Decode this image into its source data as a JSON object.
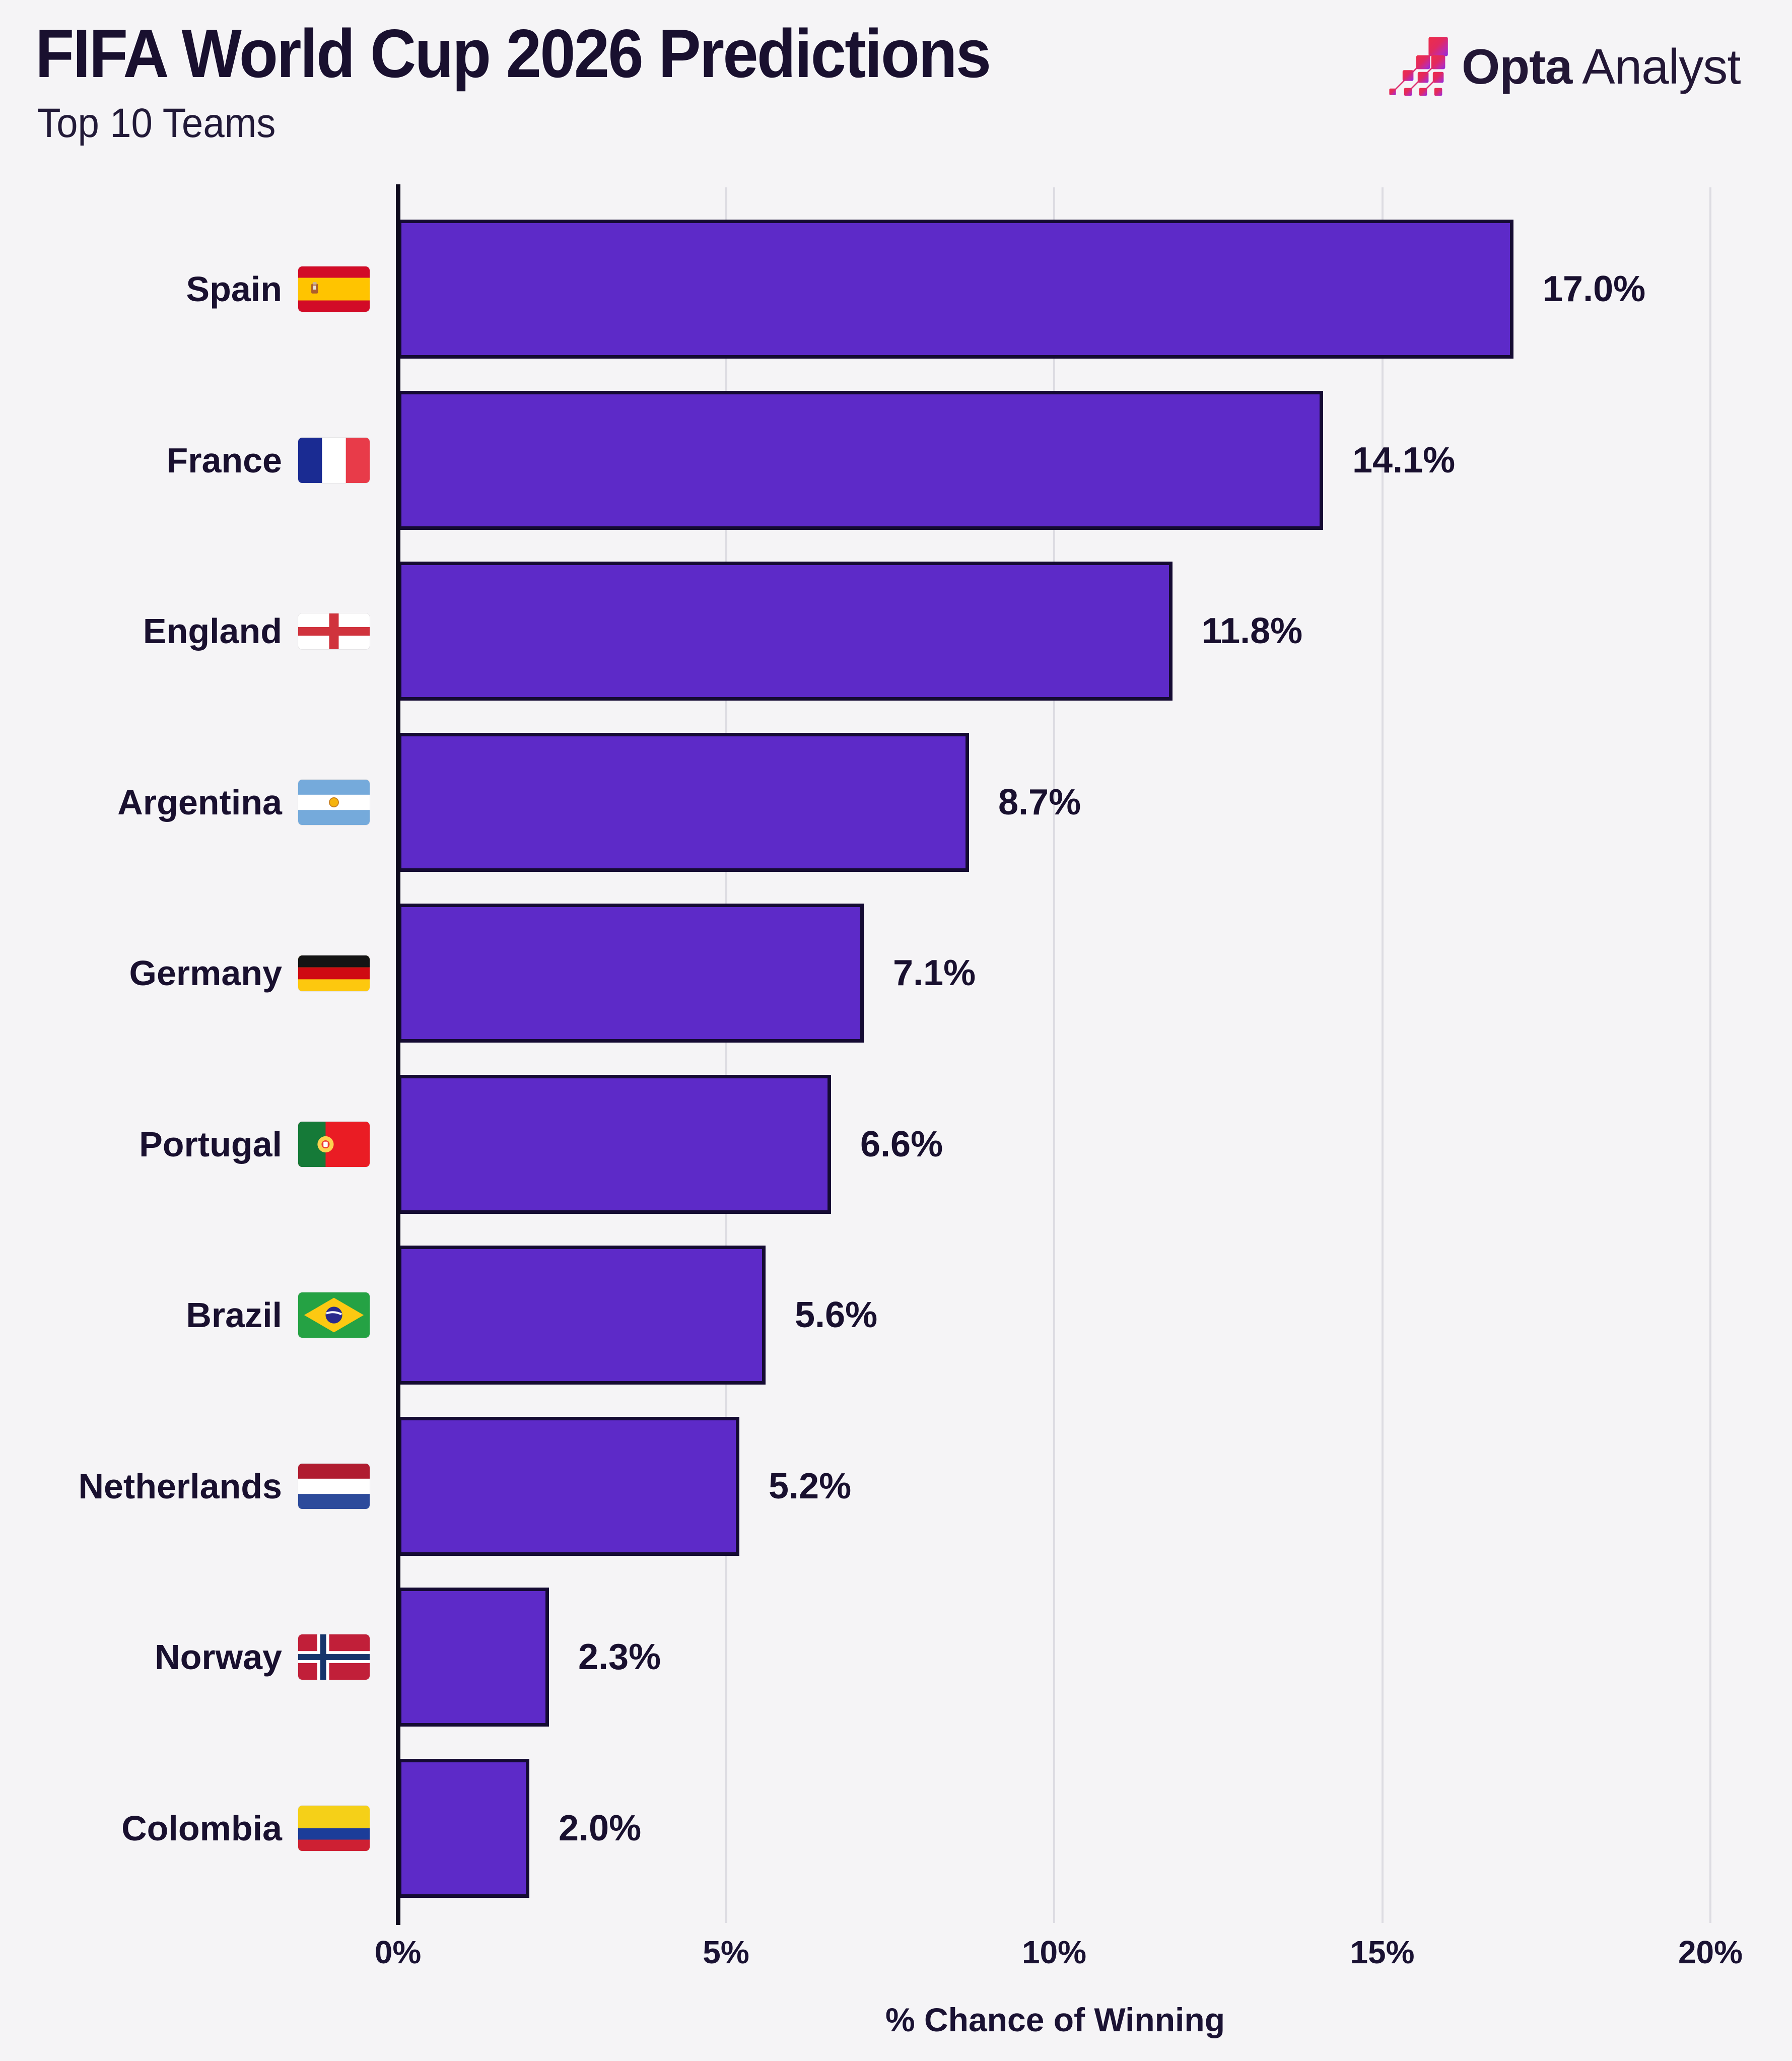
{
  "header": {
    "title": "FIFA World Cup 2026 Predictions",
    "subtitle": "Top 10 Teams"
  },
  "branding": {
    "logo_icon": "opta-stairstep-squares-icon",
    "logo_text_bold": "Opta",
    "logo_text_light": "Analyst",
    "logo_gradient": [
      "#ee2d49",
      "#e22a5f",
      "#c12ba8",
      "#8d2ee0"
    ],
    "text_color": "#231736"
  },
  "chart_data": {
    "type": "bar",
    "orientation": "horizontal",
    "title": "FIFA World Cup 2026 Predictions",
    "subtitle": "Top 10 Teams",
    "xlabel": "% Chance of Winning",
    "ylabel": "",
    "xlim": [
      0,
      20
    ],
    "x_ticks": [
      0,
      5,
      10,
      15,
      20
    ],
    "x_tick_labels": [
      "0%",
      "5%",
      "10%",
      "15%",
      "20%"
    ],
    "grid": "vertical-light",
    "bar_color": "#5d2ac8",
    "bar_border_color": "#150b33",
    "background_color": "#f5f4f6",
    "categories": [
      "Spain",
      "France",
      "England",
      "Argentina",
      "Germany",
      "Portugal",
      "Brazil",
      "Netherlands",
      "Norway",
      "Colombia"
    ],
    "values": [
      17.0,
      14.1,
      11.8,
      8.7,
      7.1,
      6.6,
      5.6,
      5.2,
      2.3,
      2.0
    ],
    "teams": [
      {
        "label": "Spain",
        "flag": "spain-flag",
        "value": 17.0,
        "value_label": "17.0%"
      },
      {
        "label": "France",
        "flag": "france-flag",
        "value": 14.1,
        "value_label": "14.1%"
      },
      {
        "label": "England",
        "flag": "england-flag",
        "value": 11.8,
        "value_label": "11.8%"
      },
      {
        "label": "Argentina",
        "flag": "argentina-flag",
        "value": 8.7,
        "value_label": "8.7%"
      },
      {
        "label": "Germany",
        "flag": "germany-flag",
        "value": 7.1,
        "value_label": "7.1%"
      },
      {
        "label": "Portugal",
        "flag": "portugal-flag",
        "value": 6.6,
        "value_label": "6.6%"
      },
      {
        "label": "Brazil",
        "flag": "brazil-flag",
        "value": 5.6,
        "value_label": "5.6%"
      },
      {
        "label": "Netherlands",
        "flag": "netherlands-flag",
        "value": 5.2,
        "value_label": "5.2%"
      },
      {
        "label": "Norway",
        "flag": "norway-flag",
        "value": 2.3,
        "value_label": "2.3%"
      },
      {
        "label": "Colombia",
        "flag": "colombia-flag",
        "value": 2.0,
        "value_label": "2.0%"
      }
    ]
  }
}
